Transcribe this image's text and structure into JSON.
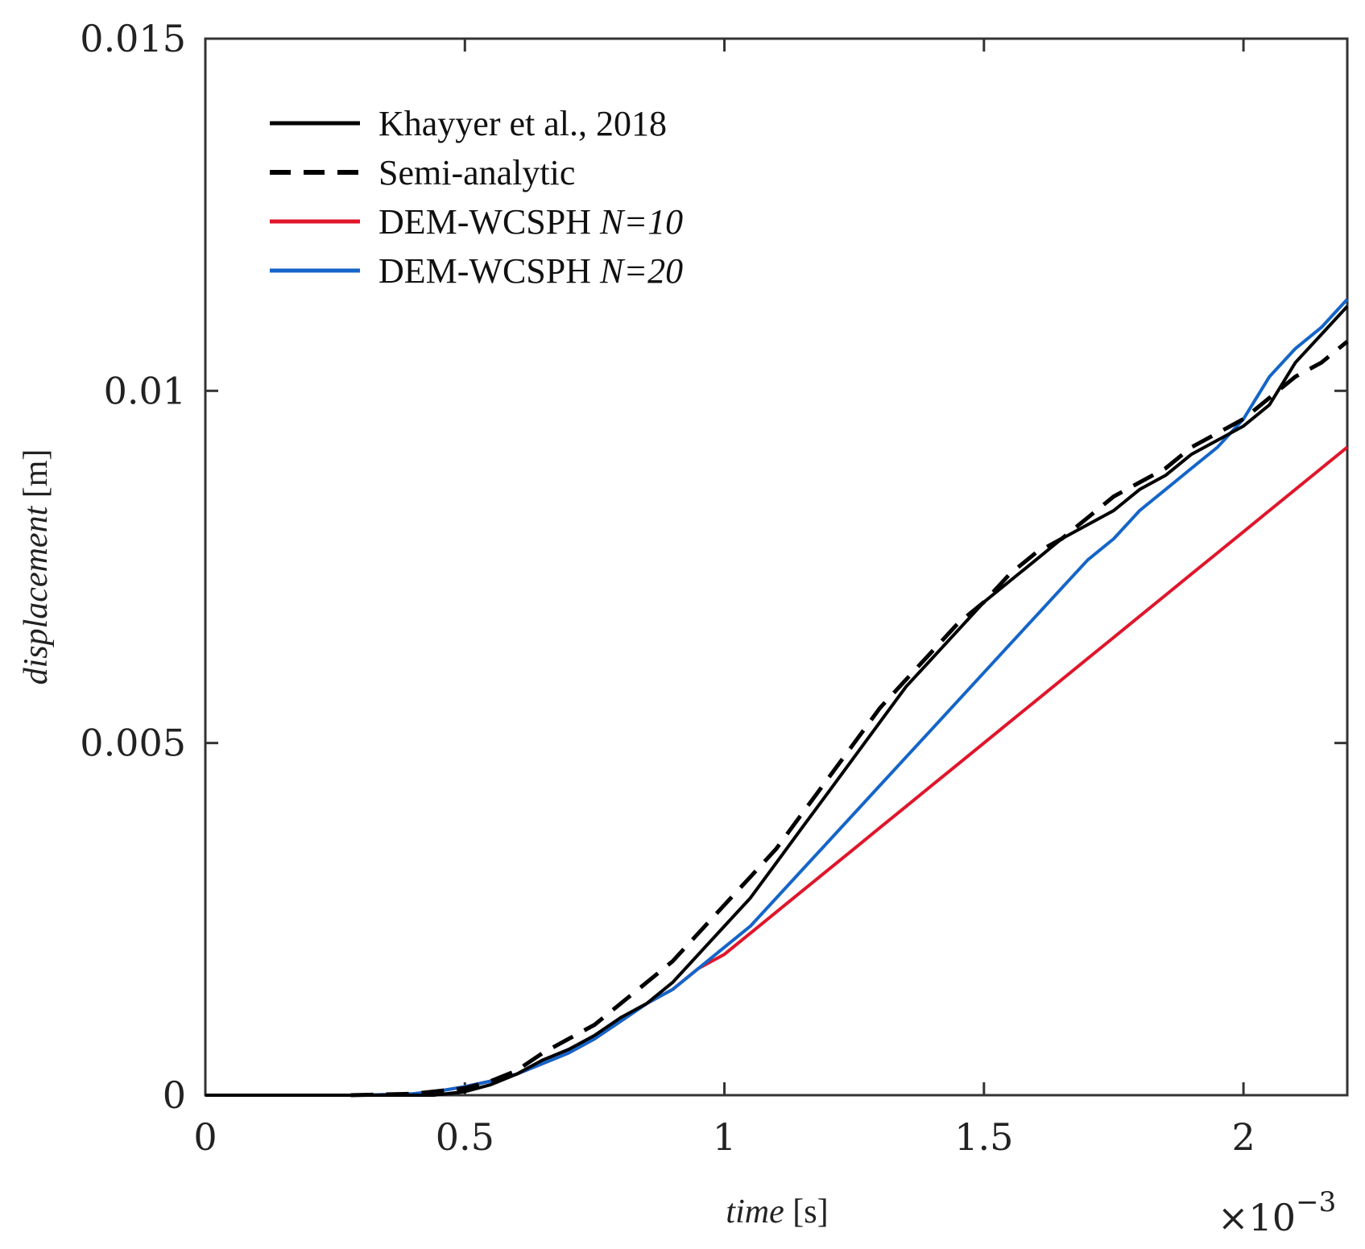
{
  "chart_data": {
    "type": "line",
    "title": "",
    "xlabel": {
      "italic": "time",
      "unit": " [s]"
    },
    "ylabel": {
      "italic": "displacement",
      "unit": "  [m]"
    },
    "x_exponent": {
      "base": "×10",
      "power": "−3"
    },
    "xlim": [
      0,
      2.2
    ],
    "ylim": [
      0,
      0.015
    ],
    "x_ticks": [
      0,
      0.5,
      1,
      1.5,
      2
    ],
    "x_tick_labels": [
      "0",
      "0.5",
      "1",
      "1.5",
      "2"
    ],
    "y_ticks": [
      0,
      0.005,
      0.01,
      0.015
    ],
    "y_tick_labels": [
      "0",
      "0.005",
      "0.01",
      "0.015"
    ],
    "grid": false,
    "legend_position": "top-left",
    "series": [
      {
        "name": "Khayyer et al., 2018",
        "legend_main": "Khayyer et al., 2018",
        "legend_italic": "",
        "color": "#000000",
        "dash": "solid",
        "x": [
          0,
          0.3,
          0.44,
          0.5,
          0.55,
          0.6,
          0.65,
          0.7,
          0.75,
          0.8,
          0.85,
          0.9,
          0.95,
          1.0,
          1.05,
          1.1,
          1.15,
          1.2,
          1.25,
          1.3,
          1.35,
          1.4,
          1.45,
          1.5,
          1.55,
          1.6,
          1.65,
          1.7,
          1.75,
          1.8,
          1.85,
          1.9,
          1.95,
          2.0,
          2.05,
          2.1,
          2.15,
          2.2
        ],
        "y": [
          0,
          0,
          0,
          5e-05,
          0.00015,
          0.0003,
          0.0005,
          0.00065,
          0.00085,
          0.0011,
          0.0013,
          0.0016,
          0.002,
          0.0024,
          0.0028,
          0.0033,
          0.0038,
          0.0043,
          0.0048,
          0.0053,
          0.0058,
          0.0062,
          0.0066,
          0.007,
          0.0073,
          0.0076,
          0.0079,
          0.0081,
          0.0083,
          0.0086,
          0.0088,
          0.0091,
          0.0093,
          0.0095,
          0.0098,
          0.0104,
          0.0108,
          0.0112
        ]
      },
      {
        "name": "Semi-analytic",
        "legend_main": "Semi-analytic",
        "legend_italic": "",
        "color": "#000000",
        "dash": "dashed",
        "x": [
          0.28,
          0.4,
          0.5,
          0.55,
          0.6,
          0.65,
          0.7,
          0.75,
          0.8,
          0.85,
          0.9,
          0.95,
          1.0,
          1.05,
          1.1,
          1.15,
          1.2,
          1.25,
          1.3,
          1.35,
          1.4,
          1.45,
          1.5,
          1.55,
          1.6,
          1.65,
          1.7,
          1.75,
          1.8,
          1.85,
          1.9,
          1.95,
          2.0,
          2.05,
          2.1,
          2.15,
          2.2
        ],
        "y": [
          0,
          2e-05,
          0.0001,
          0.0002,
          0.00035,
          0.0006,
          0.0008,
          0.001,
          0.0013,
          0.0016,
          0.0019,
          0.0023,
          0.0027,
          0.0031,
          0.0035,
          0.004,
          0.0045,
          0.005,
          0.0055,
          0.0059,
          0.0063,
          0.0067,
          0.007,
          0.0074,
          0.0077,
          0.0079,
          0.0082,
          0.0085,
          0.0087,
          0.0089,
          0.0092,
          0.0094,
          0.0096,
          0.0099,
          0.0102,
          0.0104,
          0.0107
        ]
      },
      {
        "name": "DEM-WCSPH N=10",
        "legend_main": "DEM-WCSPH ",
        "legend_italic": "N=10",
        "color": "#e0162b",
        "dash": "solid",
        "x": [
          0,
          0.3,
          0.4,
          0.45,
          0.5,
          0.55,
          0.6,
          0.65,
          0.7,
          0.75,
          0.8,
          0.85,
          0.9,
          0.95,
          1.0,
          1.05,
          1.1,
          1.15,
          1.2,
          1.25,
          1.3,
          1.35,
          1.4,
          1.45,
          1.5,
          1.55,
          1.6,
          1.65,
          1.7,
          1.75,
          1.8,
          1.85,
          1.9,
          1.95,
          2.0,
          2.05,
          2.1,
          2.15,
          2.2
        ],
        "y": [
          0,
          0,
          2e-05,
          6e-05,
          0.00012,
          0.0002,
          0.0003,
          0.00045,
          0.0006,
          0.0008,
          0.00105,
          0.0013,
          0.0015,
          0.0018,
          0.002,
          0.0023,
          0.0026,
          0.0029,
          0.0032,
          0.0035,
          0.0038,
          0.0041,
          0.0044,
          0.0047,
          0.005,
          0.0053,
          0.0056,
          0.0059,
          0.0062,
          0.0065,
          0.0068,
          0.0071,
          0.0074,
          0.0077,
          0.008,
          0.0083,
          0.0086,
          0.0089,
          0.0092
        ]
      },
      {
        "name": "DEM-WCSPH N=20",
        "legend_main": "DEM-WCSPH ",
        "legend_italic": "N=20",
        "color": "#1465c8",
        "dash": "solid",
        "x": [
          0,
          0.3,
          0.4,
          0.45,
          0.5,
          0.55,
          0.6,
          0.65,
          0.7,
          0.75,
          0.8,
          0.85,
          0.9,
          0.95,
          1.0,
          1.05,
          1.1,
          1.15,
          1.2,
          1.25,
          1.3,
          1.35,
          1.4,
          1.45,
          1.5,
          1.55,
          1.6,
          1.65,
          1.7,
          1.75,
          1.8,
          1.85,
          1.9,
          1.95,
          2.0,
          2.05,
          2.1,
          2.15,
          2.2
        ],
        "y": [
          0,
          0,
          2e-05,
          6e-05,
          0.00012,
          0.0002,
          0.0003,
          0.00045,
          0.0006,
          0.0008,
          0.00105,
          0.0013,
          0.0015,
          0.0018,
          0.0021,
          0.0024,
          0.0028,
          0.0032,
          0.0036,
          0.004,
          0.0044,
          0.0048,
          0.0052,
          0.0056,
          0.006,
          0.0064,
          0.0068,
          0.0072,
          0.0076,
          0.0079,
          0.0083,
          0.0086,
          0.0089,
          0.0092,
          0.0096,
          0.0102,
          0.0106,
          0.0109,
          0.0113
        ]
      }
    ]
  }
}
